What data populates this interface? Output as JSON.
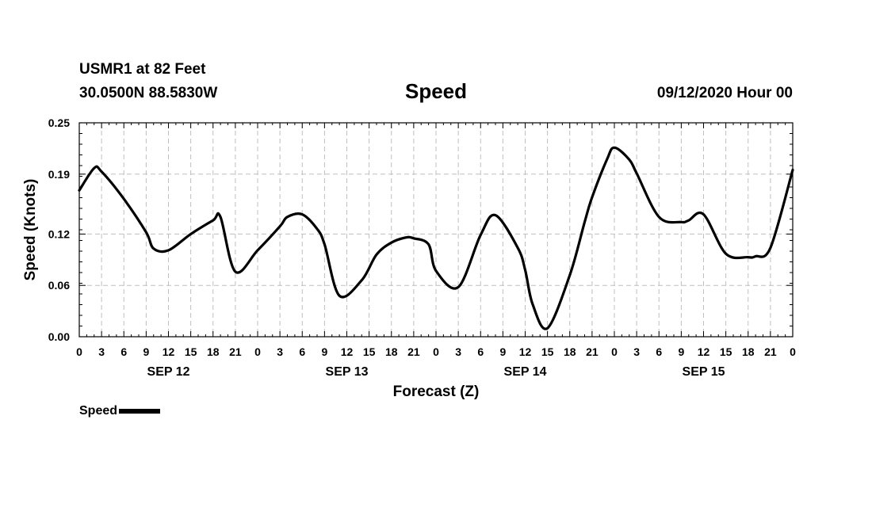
{
  "header": {
    "station": "USMR1 at 82 Feet",
    "coords": "30.0500N 88.5830W",
    "title": "Speed",
    "issued": "09/12/2020 Hour 00"
  },
  "legend": {
    "label": "Speed"
  },
  "chart_data": {
    "type": "line",
    "title": "Speed",
    "xlabel": "Forecast (Z)",
    "ylabel": "Speed (Knots)",
    "xlim": [
      0,
      96
    ],
    "ylim": [
      0,
      0.25
    ],
    "yticks": [
      0.0,
      0.06,
      0.12,
      0.19,
      0.25
    ],
    "ytick_labels": [
      "0.00",
      "0.06",
      "0.12",
      "0.19",
      "0.25"
    ],
    "xticks": [
      0,
      3,
      6,
      9,
      12,
      15,
      18,
      21,
      24,
      27,
      30,
      33,
      36,
      39,
      42,
      45,
      48,
      51,
      54,
      57,
      60,
      63,
      66,
      69,
      72,
      75,
      78,
      81,
      84,
      87,
      90,
      93,
      96
    ],
    "xtick_labels": [
      "0",
      "3",
      "6",
      "9",
      "12",
      "15",
      "18",
      "21",
      "0",
      "3",
      "6",
      "9",
      "12",
      "15",
      "18",
      "21",
      "0",
      "3",
      "6",
      "9",
      "12",
      "15",
      "18",
      "21",
      "0",
      "3",
      "6",
      "9",
      "12",
      "15",
      "18",
      "21",
      "0"
    ],
    "date_labels": [
      {
        "label": "SEP 12",
        "hour": 12
      },
      {
        "label": "SEP 13",
        "hour": 36
      },
      {
        "label": "SEP 14",
        "hour": 60
      },
      {
        "label": "SEP 15",
        "hour": 84
      }
    ],
    "grid": true,
    "line_color": "#000000",
    "series": [
      {
        "name": "Speed",
        "x": [
          0,
          2,
          3,
          6,
          9,
          10,
          12,
          15,
          18,
          19,
          21,
          24,
          27,
          28,
          30,
          32,
          33,
          35,
          38,
          40,
          42,
          44,
          45,
          47,
          48,
          51,
          54,
          56,
          59,
          60,
          61,
          63,
          66,
          68,
          69,
          71,
          72,
          74,
          75,
          78,
          81,
          82,
          84,
          87,
          90,
          91,
          93,
          96
        ],
        "y": [
          0.171,
          0.197,
          0.193,
          0.161,
          0.122,
          0.103,
          0.101,
          0.12,
          0.136,
          0.14,
          0.076,
          0.101,
          0.129,
          0.14,
          0.143,
          0.126,
          0.108,
          0.048,
          0.066,
          0.096,
          0.11,
          0.116,
          0.115,
          0.108,
          0.077,
          0.058,
          0.119,
          0.142,
          0.104,
          0.078,
          0.038,
          0.01,
          0.072,
          0.134,
          0.163,
          0.207,
          0.221,
          0.207,
          0.191,
          0.14,
          0.134,
          0.136,
          0.143,
          0.097,
          0.093,
          0.094,
          0.104,
          0.195
        ]
      }
    ]
  }
}
